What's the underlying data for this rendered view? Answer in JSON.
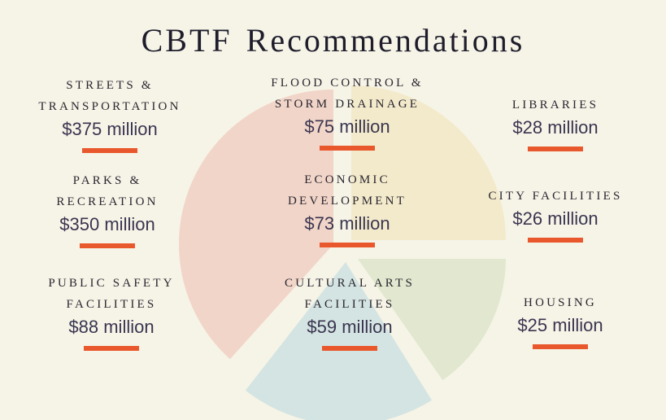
{
  "title": "CBTF Recommendations",
  "pie_colors": {
    "red": "#f1d5c8",
    "yellow": "#f3eacb",
    "green": "#e1e8cf",
    "blue": "#d4e4e2"
  },
  "accent": "#e9582c",
  "items": [
    {
      "label_lines": [
        "STREETS &",
        "TRANSPORTATION"
      ],
      "amount": "$375 million"
    },
    {
      "label_lines": [
        "FLOOD CONTROL &",
        "STORM DRAINAGE"
      ],
      "amount": "$75 million"
    },
    {
      "label_lines": [
        "LIBRARIES"
      ],
      "amount": "$28 million"
    },
    {
      "label_lines": [
        "PARKS &",
        "RECREATION"
      ],
      "amount": "$350 million"
    },
    {
      "label_lines": [
        "ECONOMIC",
        "DEVELOPMENT"
      ],
      "amount": "$73 million"
    },
    {
      "label_lines": [
        "CITY FACILITIES"
      ],
      "amount": "$26 million"
    },
    {
      "label_lines": [
        "PUBLIC SAFETY",
        "FACILITIES"
      ],
      "amount": "$88 million"
    },
    {
      "label_lines": [
        "CULTURAL ARTS",
        "FACILITIES"
      ],
      "amount": "$59 million"
    },
    {
      "label_lines": [
        "HOUSING"
      ],
      "amount": "$25 million"
    }
  ]
}
